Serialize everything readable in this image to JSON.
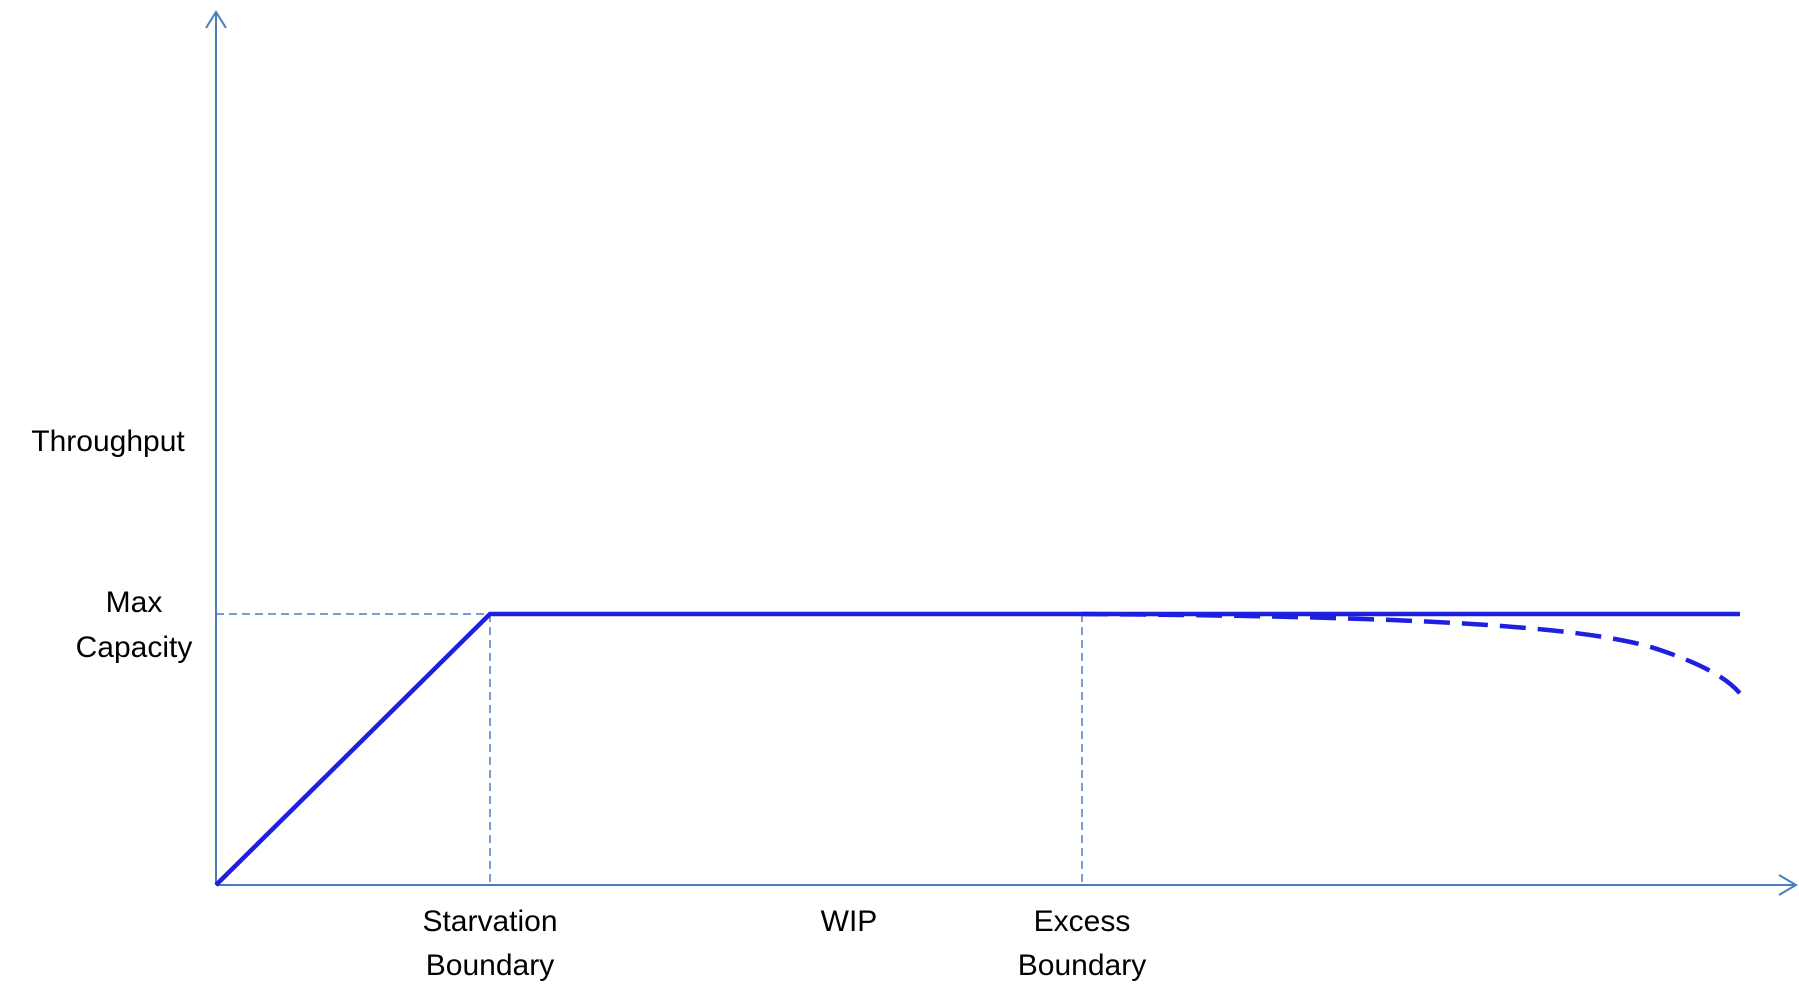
{
  "labels": {
    "y_axis": "Throughput",
    "max_capacity_line1": "Max",
    "max_capacity_line2": "Capacity",
    "starvation_line1": "Starvation",
    "starvation_line2": "Boundary",
    "x_axis": "WIP",
    "excess_line1": "Excess",
    "excess_line2": "Boundary"
  },
  "colors": {
    "axis": "#4a7ebb",
    "guide": "#4a7ebb",
    "curve": "#1f1fe0",
    "text": "#000000"
  },
  "chart_data": {
    "type": "line",
    "xlabel": "WIP",
    "ylabel": "Throughput",
    "markers": {
      "x": [
        "Starvation Boundary",
        "Excess Boundary"
      ],
      "y": [
        "Max Capacity"
      ]
    }
  }
}
